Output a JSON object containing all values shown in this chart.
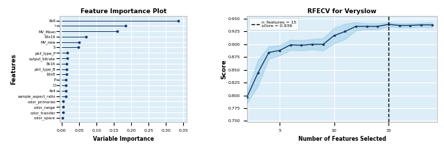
{
  "left_title": "Feature Importance Plot",
  "left_xlabel": "Variable Importance",
  "left_ylabel": "Features",
  "features": [
    "8x8",
    "i",
    "MV_Mean",
    "16x16",
    "MV_new",
    "S",
    "pict_type_P",
    "output_bitrate",
    "8x16",
    "pict_type_B",
    "16x8",
    "P",
    "D",
    "4x4",
    "sample_aspect_ratio",
    "color_primaries",
    "color_range",
    "color_transfer",
    "color_space"
  ],
  "importances": [
    0.335,
    0.183,
    0.16,
    0.071,
    0.051,
    0.049,
    0.017,
    0.016,
    0.015,
    0.014,
    0.014,
    0.013,
    0.012,
    0.012,
    0.012,
    0.005,
    0.004,
    0.004,
    0.003
  ],
  "dot_color": "#1a3a6b",
  "line_color": "#1a3a6b",
  "bg_color": "#ddeef8",
  "grid_color": "white",
  "left_xlim": [
    -0.005,
    0.36
  ],
  "left_xticks": [
    0.0,
    0.05,
    0.1,
    0.15,
    0.2,
    0.25,
    0.3,
    0.35
  ],
  "right_title": "RFECV for Veryslow",
  "right_xlabel": "Number of Features Selected",
  "right_ylabel": "Score",
  "n_features": 15,
  "score": 0.939,
  "rfecv_x": [
    2,
    3,
    4,
    5,
    6,
    7,
    8,
    9,
    10,
    11,
    12,
    13,
    14,
    15,
    16,
    17,
    18,
    19
  ],
  "rfecv_mean": [
    0.797,
    0.844,
    0.884,
    0.888,
    0.899,
    0.898,
    0.9,
    0.9,
    0.917,
    0.925,
    0.935,
    0.935,
    0.935,
    0.939,
    0.937,
    0.937,
    0.938,
    0.938
  ],
  "rfecv_std": [
    0.012,
    0.025,
    0.012,
    0.01,
    0.01,
    0.01,
    0.01,
    0.012,
    0.015,
    0.015,
    0.008,
    0.006,
    0.006,
    0.004,
    0.004,
    0.004,
    0.004,
    0.005
  ],
  "rfecv_ylim": [
    0.748,
    0.955
  ],
  "rfecv_yticks": [
    0.75,
    0.775,
    0.8,
    0.825,
    0.85,
    0.875,
    0.9,
    0.925,
    0.95
  ],
  "rfecv_xticks": [
    5,
    10,
    15
  ],
  "rfecv_xlim": [
    2,
    19.5
  ]
}
